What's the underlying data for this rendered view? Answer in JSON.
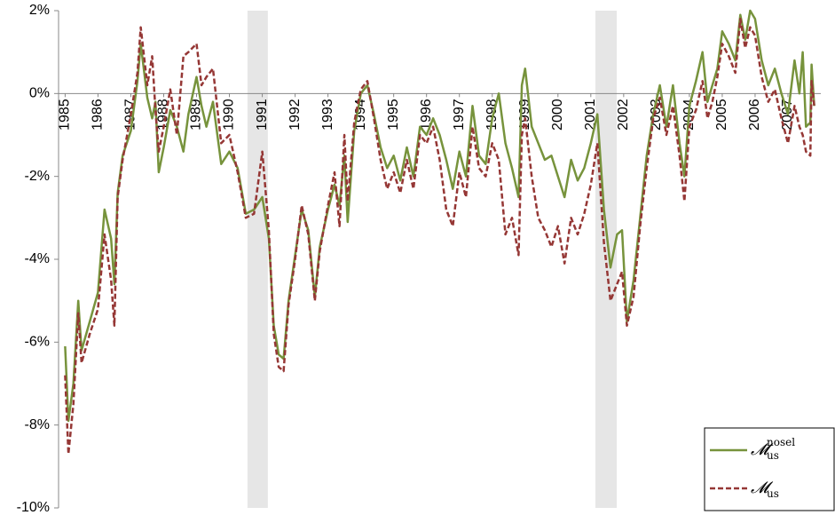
{
  "chart_data": {
    "type": "line",
    "x": [
      1985.0,
      1985.1,
      1985.25,
      1985.4,
      1985.5,
      1985.75,
      1986.0,
      1986.2,
      1986.4,
      1986.5,
      1986.6,
      1986.75,
      1987.0,
      1987.2,
      1987.3,
      1987.5,
      1987.65,
      1987.75,
      1987.85,
      1988.0,
      1988.2,
      1988.4,
      1988.6,
      1988.75,
      1989.0,
      1989.15,
      1989.3,
      1989.5,
      1989.75,
      1990.0,
      1990.25,
      1990.5,
      1990.75,
      1991.0,
      1991.2,
      1991.35,
      1991.5,
      1991.65,
      1991.8,
      1992.0,
      1992.2,
      1992.4,
      1992.6,
      1992.75,
      1993.0,
      1993.2,
      1993.35,
      1993.5,
      1993.6,
      1993.8,
      1994.0,
      1994.2,
      1994.4,
      1994.6,
      1994.8,
      1995.0,
      1995.2,
      1995.4,
      1995.6,
      1995.8,
      1996.0,
      1996.2,
      1996.4,
      1996.6,
      1996.8,
      1997.0,
      1997.2,
      1997.4,
      1997.6,
      1997.8,
      1998.0,
      1998.2,
      1998.4,
      1998.6,
      1998.8,
      1998.9,
      1999.0,
      1999.2,
      1999.4,
      1999.6,
      1999.8,
      2000.0,
      2000.2,
      2000.4,
      2000.6,
      2000.8,
      2001.0,
      2001.2,
      2001.4,
      2001.6,
      2001.8,
      2001.95,
      2002.1,
      2002.3,
      2002.5,
      2002.7,
      2002.9,
      2003.1,
      2003.3,
      2003.5,
      2003.7,
      2003.85,
      2004.0,
      2004.2,
      2004.4,
      2004.55,
      2004.7,
      2004.85,
      2005.0,
      2005.2,
      2005.4,
      2005.55,
      2005.7,
      2005.85,
      2006.0,
      2006.2,
      2006.4,
      2006.6,
      2006.8,
      2007.0,
      2007.2,
      2007.35,
      2007.45,
      2007.55,
      2007.68,
      2007.72,
      2007.8
    ],
    "series": [
      {
        "name": "𝓜",
        "subscript": "us",
        "superscript": "nosel",
        "color": "#77933c",
        "dash": false,
        "values": [
          -6.1,
          -7.9,
          -7.0,
          -5.0,
          -6.2,
          -5.5,
          -4.8,
          -2.8,
          -3.5,
          -4.6,
          -2.4,
          -1.5,
          -0.9,
          0.3,
          1.2,
          -0.1,
          -0.6,
          -0.2,
          -1.9,
          -1.3,
          -0.4,
          -0.8,
          -1.4,
          -0.5,
          0.4,
          -0.3,
          -0.8,
          -0.2,
          -1.7,
          -1.4,
          -1.8,
          -2.9,
          -2.8,
          -2.5,
          -3.5,
          -5.6,
          -6.3,
          -6.4,
          -5.0,
          -3.9,
          -2.8,
          -3.3,
          -4.9,
          -3.7,
          -2.8,
          -2.2,
          -2.7,
          -1.5,
          -3.1,
          -0.9,
          0.0,
          0.2,
          -0.5,
          -1.3,
          -1.8,
          -1.5,
          -2.1,
          -1.3,
          -2.0,
          -0.8,
          -1.0,
          -0.6,
          -1.0,
          -1.6,
          -2.3,
          -1.4,
          -2.0,
          -0.3,
          -1.5,
          -1.7,
          -0.6,
          0.0,
          -1.2,
          -1.8,
          -2.5,
          0.2,
          0.6,
          -0.8,
          -1.2,
          -1.6,
          -1.5,
          -2.0,
          -2.5,
          -1.6,
          -2.1,
          -1.8,
          -1.2,
          -0.5,
          -2.8,
          -4.2,
          -3.4,
          -3.3,
          -5.5,
          -4.5,
          -3.0,
          -1.5,
          -0.5,
          0.2,
          -0.8,
          0.2,
          -1.2,
          -2.0,
          -0.3,
          0.3,
          1.0,
          -0.2,
          0.2,
          0.6,
          1.5,
          1.2,
          0.8,
          1.9,
          1.3,
          2.0,
          1.8,
          0.8,
          0.2,
          0.6,
          0.0,
          -0.5,
          0.8,
          0.0,
          1.0,
          -0.8,
          -0.7,
          0.7,
          -0.3
        ]
      },
      {
        "name": "𝓜",
        "subscript": "us",
        "color": "#953735",
        "dash": true,
        "values": [
          -6.8,
          -8.7,
          -7.5,
          -5.3,
          -6.5,
          -5.8,
          -5.2,
          -3.4,
          -4.5,
          -5.6,
          -2.5,
          -1.6,
          -0.5,
          0.5,
          1.6,
          0.2,
          0.9,
          -0.4,
          -1.4,
          -0.8,
          0.1,
          -1.0,
          0.9,
          1.0,
          1.2,
          0.2,
          0.4,
          0.6,
          -1.2,
          -1.0,
          -1.9,
          -3.0,
          -2.9,
          -1.4,
          -3.3,
          -5.8,
          -6.6,
          -6.7,
          -5.1,
          -4.0,
          -2.7,
          -3.4,
          -5.0,
          -3.8,
          -2.7,
          -1.9,
          -3.2,
          -1.0,
          -2.6,
          -0.7,
          0.1,
          0.3,
          -0.6,
          -1.6,
          -2.3,
          -1.9,
          -2.4,
          -1.6,
          -2.3,
          -1.0,
          -1.2,
          -0.8,
          -1.6,
          -2.8,
          -3.2,
          -1.9,
          -2.5,
          -0.8,
          -1.8,
          -2.0,
          -1.2,
          -1.6,
          -3.4,
          -3.0,
          -3.9,
          -1.0,
          -0.6,
          -2.0,
          -3.0,
          -3.3,
          -3.7,
          -3.2,
          -4.1,
          -3.0,
          -3.4,
          -2.9,
          -2.2,
          -1.2,
          -3.6,
          -5.0,
          -4.6,
          -4.3,
          -5.6,
          -4.9,
          -3.2,
          -1.8,
          -0.6,
          -0.1,
          -1.0,
          -0.3,
          -1.5,
          -2.6,
          -0.8,
          -0.4,
          0.3,
          -0.6,
          -0.2,
          0.4,
          1.2,
          0.9,
          0.5,
          1.8,
          1.1,
          1.6,
          1.4,
          0.4,
          -0.2,
          0.1,
          -0.6,
          -1.2,
          -0.3,
          -0.8,
          -1.0,
          -1.4,
          -1.5,
          0.3,
          -0.3
        ]
      }
    ],
    "xlim": [
      1984.8,
      2008.0
    ],
    "xticks": [
      1985,
      1986,
      1987,
      1988,
      1989,
      1990,
      1991,
      1992,
      1993,
      1994,
      1995,
      1996,
      1997,
      1998,
      1999,
      2000,
      2001,
      2002,
      2003,
      2004,
      2005,
      2006,
      2007
    ],
    "ylim": [
      -10,
      2
    ],
    "yticks": [
      {
        "value": -10,
        "label": "-10%"
      },
      {
        "value": -8,
        "label": "-8%"
      },
      {
        "value": -6,
        "label": "-6%"
      },
      {
        "value": -4,
        "label": "-4%"
      },
      {
        "value": -2,
        "label": "-2%"
      },
      {
        "value": 0,
        "label": "0%"
      },
      {
        "value": 2,
        "label": "2%"
      }
    ],
    "shaded_periods": [
      [
        1990.55,
        1991.17
      ],
      [
        2001.14,
        2001.79
      ]
    ],
    "legend": "lower right"
  }
}
